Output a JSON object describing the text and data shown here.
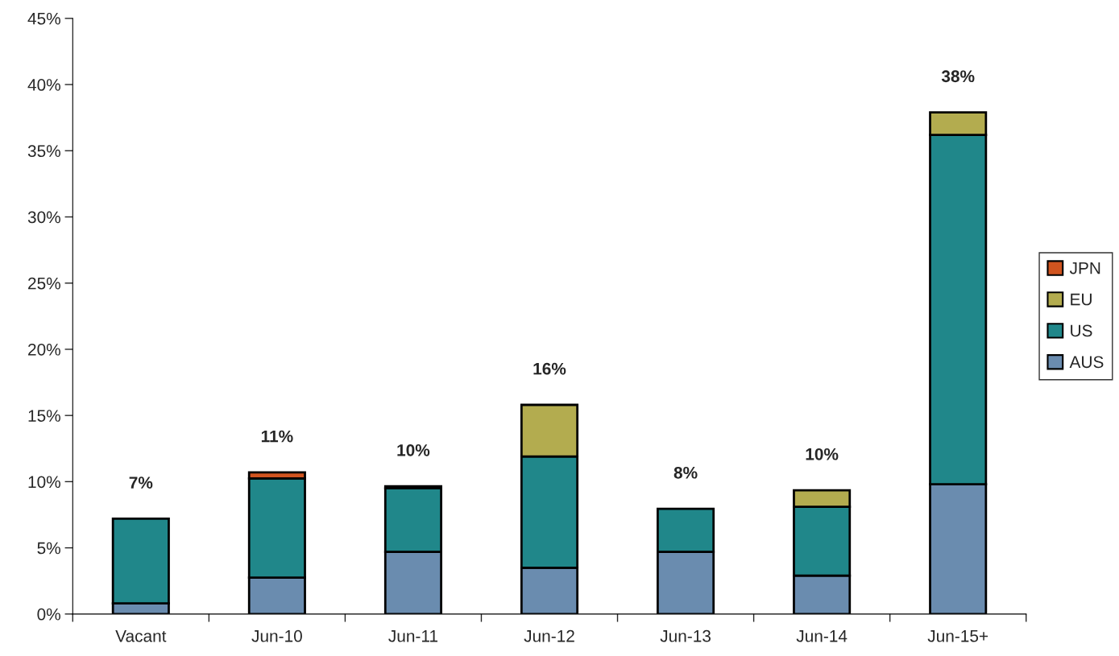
{
  "chart_data": {
    "type": "bar",
    "stacked": true,
    "categories": [
      "Vacant",
      "Jun-10",
      "Jun-11",
      "Jun-12",
      "Jun-13",
      "Jun-14",
      "Jun-15+"
    ],
    "series": [
      {
        "name": "AUS",
        "color": "#6a8caf",
        "values": [
          0.8,
          2.75,
          4.7,
          3.5,
          4.7,
          2.9,
          9.8
        ]
      },
      {
        "name": "US",
        "color": "#20878a",
        "values": [
          6.4,
          7.5,
          4.8,
          8.4,
          3.25,
          5.2,
          26.4
        ]
      },
      {
        "name": "EU",
        "color": "#b3ac4f",
        "values": [
          null,
          null,
          null,
          3.9,
          null,
          1.25,
          1.7
        ]
      },
      {
        "name": "JPN",
        "color": "#d0541f",
        "values": [
          null,
          0.45,
          0.15,
          null,
          null,
          null,
          null
        ]
      }
    ],
    "totals": [
      "7%",
      "11%",
      "10%",
      "16%",
      "8%",
      "10%",
      "38%"
    ],
    "ylim": [
      0,
      45
    ],
    "yticks": [
      {
        "value": 0,
        "label": "0%"
      },
      {
        "value": 5,
        "label": "5%"
      },
      {
        "value": 10,
        "label": "10%"
      },
      {
        "value": 15,
        "label": "15%"
      },
      {
        "value": 20,
        "label": "20%"
      },
      {
        "value": 25,
        "label": "25%"
      },
      {
        "value": 30,
        "label": "30%"
      },
      {
        "value": 35,
        "label": "35%"
      },
      {
        "value": 40,
        "label": "40%"
      },
      {
        "value": 45,
        "label": "45%"
      }
    ],
    "grid": false,
    "legend": "right"
  }
}
